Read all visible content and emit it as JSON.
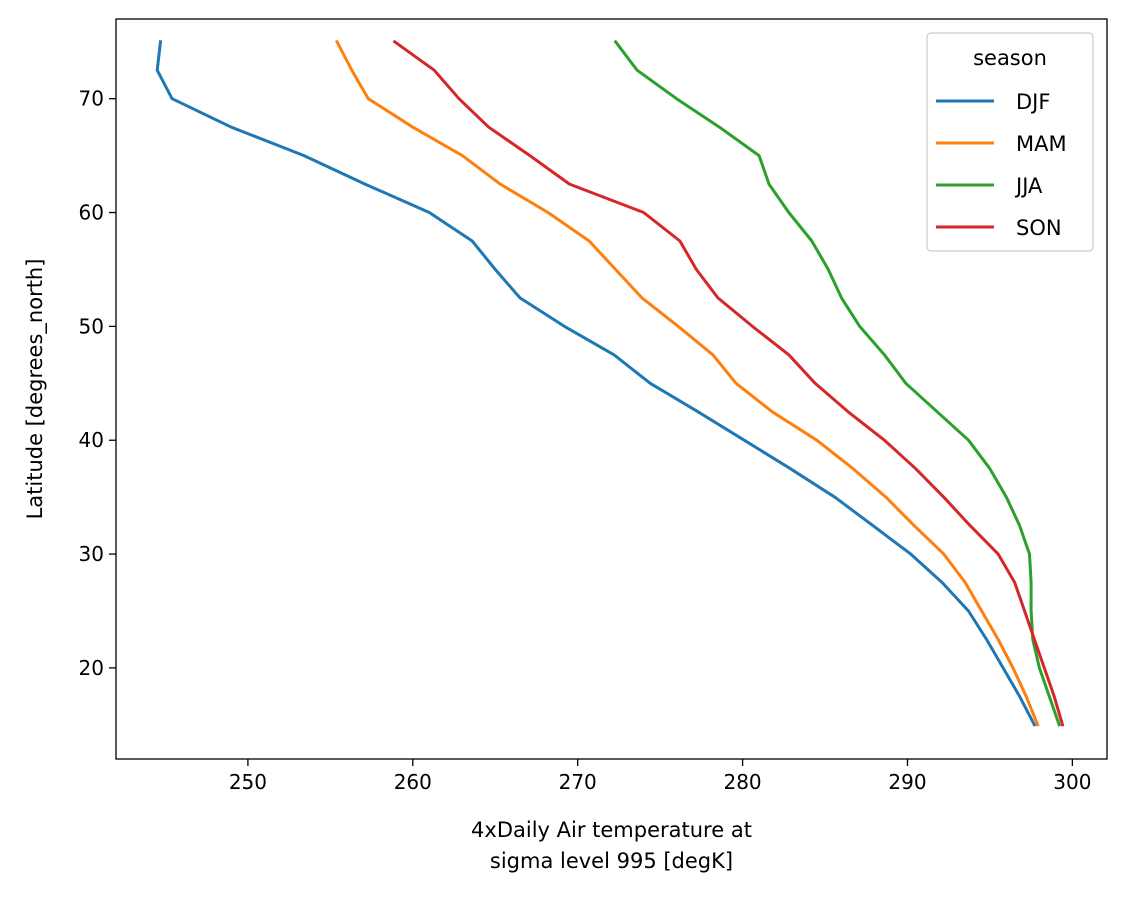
{
  "chart_data": {
    "type": "line",
    "xlabel_lines": [
      "4xDaily Air temperature at",
      "sigma level 995 [degK]"
    ],
    "ylabel": "Latitude [degrees_north]",
    "xlim": [
      242,
      302.1
    ],
    "ylim": [
      12,
      77
    ],
    "xticks": [
      250,
      260,
      270,
      280,
      290,
      300
    ],
    "yticks": [
      20,
      30,
      40,
      50,
      60,
      70
    ],
    "grid": false,
    "legend": {
      "title": "season",
      "position": "top-right"
    },
    "y": [
      75,
      72.5,
      70,
      67.5,
      65,
      62.5,
      60,
      57.5,
      55,
      52.5,
      50,
      47.5,
      45,
      42.5,
      40,
      37.5,
      35,
      32.5,
      30,
      27.5,
      25,
      22.5,
      20,
      17.5,
      15
    ],
    "series": [
      {
        "name": "DJF",
        "color": "#1f77b4",
        "values": [
          244.7,
          244.5,
          245.4,
          249.0,
          253.4,
          257.1,
          261.0,
          263.6,
          265.0,
          266.5,
          269.2,
          272.2,
          274.4,
          277.3,
          280.1,
          282.9,
          285.6,
          287.9,
          290.2,
          292.1,
          293.7,
          294.8,
          295.8,
          296.8,
          297.7
        ]
      },
      {
        "name": "MAM",
        "color": "#ff7f0e",
        "values": [
          255.4,
          256.3,
          257.3,
          260.0,
          263.0,
          265.3,
          268.2,
          270.7,
          272.3,
          273.9,
          276.1,
          278.2,
          279.6,
          281.8,
          284.5,
          286.7,
          288.7,
          290.4,
          292.2,
          293.5,
          294.5,
          295.5,
          296.4,
          297.2,
          297.9
        ]
      },
      {
        "name": "JJA",
        "color": "#2ca02c",
        "values": [
          272.3,
          273.6,
          276.0,
          278.6,
          281.0,
          281.6,
          282.8,
          284.2,
          285.2,
          286.0,
          287.1,
          288.6,
          289.9,
          291.8,
          293.7,
          295.0,
          296.0,
          296.8,
          297.4,
          297.5,
          297.5,
          297.6,
          298.0,
          298.6,
          299.2
        ]
      },
      {
        "name": "SON",
        "color": "#d62728",
        "values": [
          258.9,
          261.3,
          262.8,
          264.6,
          267.1,
          269.5,
          274.0,
          276.2,
          277.2,
          278.5,
          280.6,
          282.8,
          284.4,
          286.4,
          288.6,
          290.5,
          292.2,
          293.8,
          295.5,
          296.5,
          297.1,
          297.7,
          298.3,
          298.9,
          299.4
        ]
      }
    ]
  }
}
